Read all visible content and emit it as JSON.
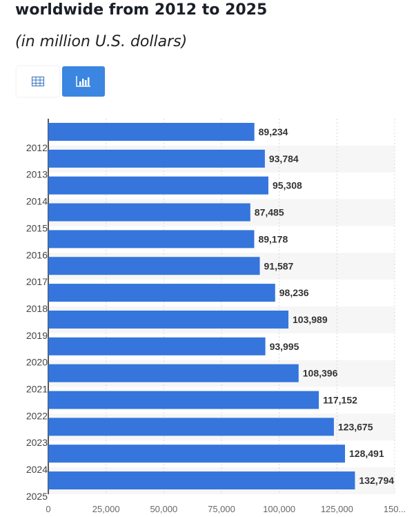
{
  "header": {
    "title": "worldwide from 2012 to 2025",
    "subtitle": "(in million U.S. dollars)"
  },
  "toolbar": {
    "table_view": "table-icon",
    "chart_view": "bar-chart-icon"
  },
  "colors": {
    "bar": "#3575dc",
    "accent": "#3a86e0"
  },
  "chart_data": {
    "type": "bar",
    "orientation": "horizontal",
    "categories": [
      "2012",
      "2013",
      "2014",
      "2015",
      "2016",
      "2017",
      "2018",
      "2019",
      "2020",
      "2021",
      "2022",
      "2023",
      "2024",
      "2025"
    ],
    "values": [
      89234,
      93784,
      95308,
      87485,
      89178,
      91587,
      98236,
      103989,
      93995,
      108396,
      117152,
      123675,
      128491,
      132794
    ],
    "value_labels": [
      "89,234",
      "93,784",
      "95,308",
      "87,485",
      "89,178",
      "91,587",
      "98,236",
      "103,989",
      "93,995",
      "108,396",
      "117,152",
      "123,675",
      "128,491",
      "132,794"
    ],
    "xticks": [
      "0",
      "25,000",
      "50,000",
      "75,000",
      "100,000",
      "125,000",
      "150..."
    ],
    "xlim": [
      0,
      150000
    ],
    "grid": true,
    "legend": "none"
  }
}
